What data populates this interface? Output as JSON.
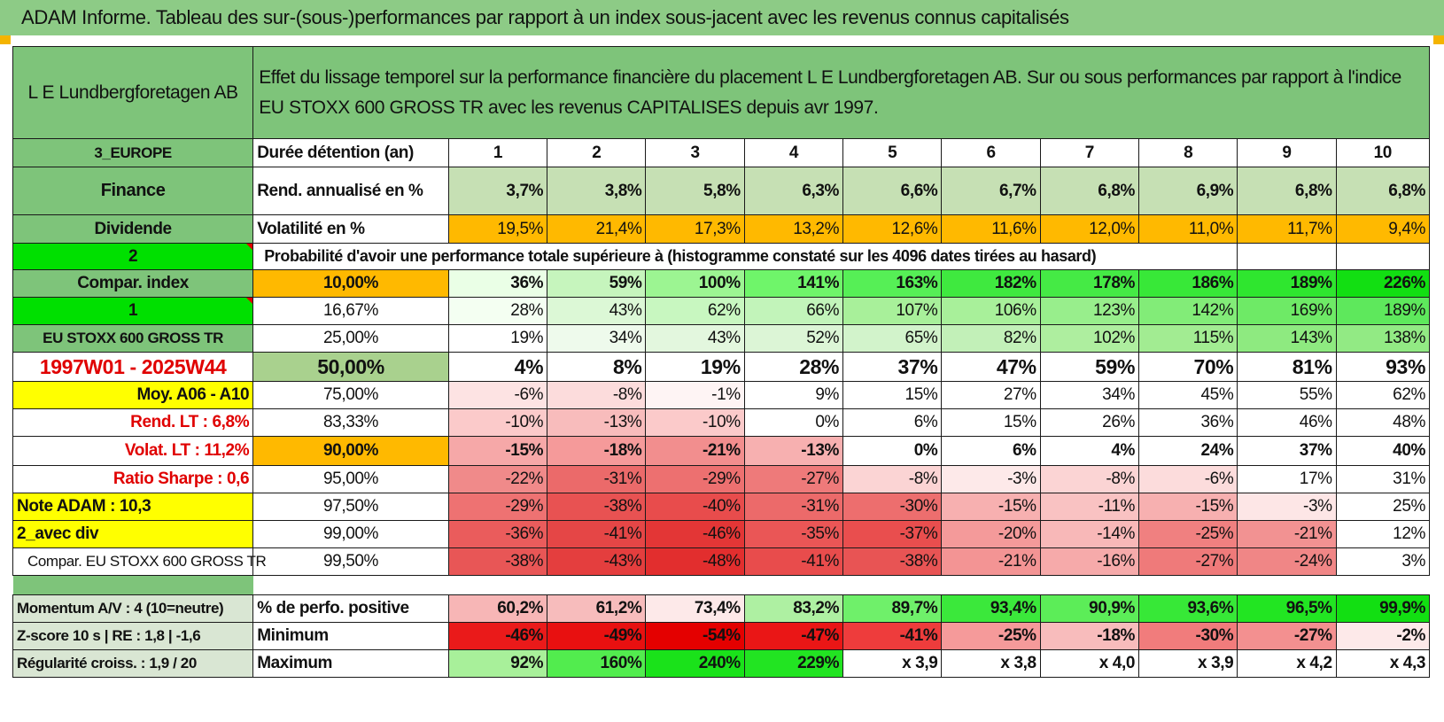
{
  "title": "ADAM Informe. Tableau des sur-(sous-)performances par rapport à un index sous-jacent avec les revenus connus capitalisés",
  "colors": {
    "header_green": "#7ec47a",
    "lime": "#00e000",
    "yellow": "#ffff00",
    "orange": "#ffb900",
    "red_text": "#e00000"
  },
  "header": {
    "name": "L E Lundbergforetagen AB",
    "description": "Effet du lissage temporel sur la performance financière du placement L E Lundbergforetagen AB. Sur ou sous performances par rapport à l'indice EU STOXX 600 GROSS TR avec les revenus CAPITALISES depuis avr 1997."
  },
  "left": {
    "region": "3_EUROPE",
    "sector": "Finance",
    "type": "Dividende",
    "num2": "2",
    "compar_index": "Compar. index",
    "num1": "1",
    "index_name": "EU STOXX 600 GROSS TR",
    "period": "1997W01 - 2025W44",
    "moy": "Moy. A06 - A10",
    "rend_lt": "Rend. LT :    6,8%",
    "volat_lt": "Volat. LT :    11,2%",
    "sharpe": "Ratio Sharpe :    0,6",
    "note": "Note ADAM : 10,3",
    "avec_div": "2_avec div",
    "compar_eu": "Compar. EU STOXX 600 GROSS TR",
    "momentum": "Momentum A/V : 4 (10=neutre)",
    "zscore": "Z-score 10 s | RE : 1,8 | -1,6",
    "regularite": "Régularité croiss. : 1,9 / 20"
  },
  "rows": {
    "duree": {
      "label": "Durée détention (an)",
      "values": [
        "1",
        "2",
        "3",
        "4",
        "5",
        "6",
        "7",
        "8",
        "9",
        "10"
      ]
    },
    "rend": {
      "label": "Rend. annualisé en %",
      "values": [
        "3,7%",
        "3,8%",
        "5,8%",
        "6,3%",
        "6,6%",
        "6,7%",
        "6,8%",
        "6,9%",
        "6,8%",
        "6,8%"
      ]
    },
    "vol": {
      "label": "Volatilité en %",
      "values": [
        "19,5%",
        "21,4%",
        "17,3%",
        "13,2%",
        "12,6%",
        "11,6%",
        "12,0%",
        "11,0%",
        "11,7%",
        "9,4%"
      ]
    },
    "prob_title": "Probabilité d'avoir une performance totale supérieure à (histogramme constaté sur les 4096 dates tirées au hasard)",
    "quantiles": [
      {
        "q": "10,00%",
        "values": [
          "36%",
          "59%",
          "100%",
          "141%",
          "163%",
          "182%",
          "178%",
          "186%",
          "189%",
          "226%"
        ]
      },
      {
        "q": "16,67%",
        "values": [
          "28%",
          "43%",
          "62%",
          "66%",
          "107%",
          "106%",
          "123%",
          "142%",
          "169%",
          "189%"
        ]
      },
      {
        "q": "25,00%",
        "values": [
          "19%",
          "34%",
          "43%",
          "52%",
          "65%",
          "82%",
          "102%",
          "115%",
          "143%",
          "138%"
        ]
      },
      {
        "q": "50,00%",
        "values": [
          "4%",
          "8%",
          "19%",
          "28%",
          "37%",
          "47%",
          "59%",
          "70%",
          "81%",
          "93%"
        ]
      },
      {
        "q": "75,00%",
        "values": [
          "-6%",
          "-8%",
          "-1%",
          "9%",
          "15%",
          "27%",
          "34%",
          "45%",
          "55%",
          "62%"
        ]
      },
      {
        "q": "83,33%",
        "values": [
          "-10%",
          "-13%",
          "-10%",
          "0%",
          "6%",
          "15%",
          "26%",
          "36%",
          "46%",
          "48%"
        ]
      },
      {
        "q": "90,00%",
        "values": [
          "-15%",
          "-18%",
          "-21%",
          "-13%",
          "0%",
          "6%",
          "4%",
          "24%",
          "37%",
          "40%"
        ]
      },
      {
        "q": "95,00%",
        "values": [
          "-22%",
          "-31%",
          "-29%",
          "-27%",
          "-8%",
          "-3%",
          "-8%",
          "-6%",
          "17%",
          "31%"
        ]
      },
      {
        "q": "97,50%",
        "values": [
          "-29%",
          "-38%",
          "-40%",
          "-31%",
          "-30%",
          "-15%",
          "-11%",
          "-15%",
          "-3%",
          "25%"
        ]
      },
      {
        "q": "99,00%",
        "values": [
          "-36%",
          "-41%",
          "-46%",
          "-35%",
          "-37%",
          "-20%",
          "-14%",
          "-25%",
          "-21%",
          "12%"
        ]
      },
      {
        "q": "99,50%",
        "values": [
          "-38%",
          "-43%",
          "-48%",
          "-41%",
          "-38%",
          "-21%",
          "-16%",
          "-27%",
          "-24%",
          "3%"
        ]
      }
    ],
    "positive": {
      "label": "% de perfo. positive",
      "values": [
        "60,2%",
        "61,2%",
        "73,4%",
        "83,2%",
        "89,7%",
        "93,4%",
        "90,9%",
        "93,6%",
        "96,5%",
        "99,9%"
      ]
    },
    "minimum": {
      "label": "Minimum",
      "values": [
        "-46%",
        "-49%",
        "-54%",
        "-47%",
        "-41%",
        "-25%",
        "-18%",
        "-30%",
        "-27%",
        "-2%"
      ]
    },
    "maximum": {
      "label": "Maximum",
      "values": [
        "92%",
        "160%",
        "240%",
        "229%",
        "x 3,9",
        "x 3,8",
        "x 4,0",
        "x 3,9",
        "x 4,2",
        "x 4,3"
      ]
    }
  }
}
